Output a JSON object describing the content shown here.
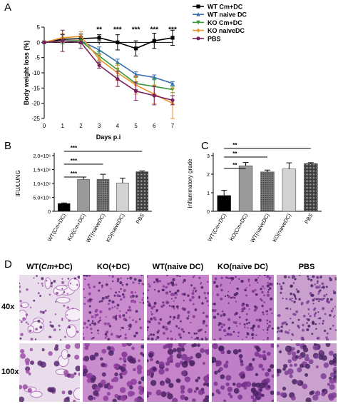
{
  "panels": {
    "a": "A",
    "b": "B",
    "c": "C",
    "d": "D"
  },
  "chart_data": [
    {
      "type": "line",
      "panel": "A",
      "xlabel": "Days p.i",
      "ylabel": "Body weight loss (%)",
      "xlim": [
        0,
        7
      ],
      "ylim": [
        -25,
        5
      ],
      "xticks": [
        "0",
        "1",
        "2",
        "3",
        "4",
        "5",
        "6",
        "7"
      ],
      "yticks": [
        "5",
        "0",
        "-5",
        "-10",
        "-15",
        "-20",
        "-25"
      ],
      "x": [
        0,
        1,
        2,
        3,
        4,
        5,
        6,
        7
      ],
      "series": [
        {
          "name": "WT Cm+DC",
          "color": "#000000",
          "marker": "square",
          "values": [
            0,
            1.0,
            1.2,
            1.5,
            0,
            -2.0,
            0.5,
            1.5
          ],
          "errors": [
            0,
            1.5,
            1.5,
            1.0,
            2.5,
            2.5,
            2.5,
            2.5
          ]
        },
        {
          "name": "WT naive DC",
          "color": "#3a6fb0",
          "marker": "triangle",
          "values": [
            0,
            0.5,
            0.5,
            -2.5,
            -6.5,
            -10.5,
            -11.5,
            -13.5
          ],
          "errors": [
            0,
            1.0,
            1.0,
            1.0,
            1.0,
            0.8,
            0.8,
            0.6
          ]
        },
        {
          "name": "KO Cm+DC",
          "color": "#3a9a3a",
          "marker": "triangle-down",
          "values": [
            0,
            0.5,
            0.5,
            -4.5,
            -9.0,
            -13.5,
            -14.5,
            -15.5
          ],
          "errors": [
            0,
            1.0,
            1.0,
            1.5,
            2.0,
            2.0,
            2.5,
            1.0
          ]
        },
        {
          "name": "KO naiveDC",
          "color": "#e8922a",
          "marker": "diamond",
          "values": [
            0,
            1.5,
            2.0,
            -5.5,
            -10.0,
            -14.0,
            -17.0,
            -20.0
          ],
          "errors": [
            0,
            1.5,
            1.5,
            1.5,
            2.5,
            3.0,
            3.0,
            5.0
          ]
        },
        {
          "name": "PBS",
          "color": "#7a1f5e",
          "marker": "circle",
          "values": [
            0,
            0.5,
            0,
            -7.5,
            -12.0,
            -16.0,
            -17.5,
            -19.0
          ],
          "errors": [
            0,
            3.5,
            2.0,
            1.0,
            2.5,
            3.0,
            3.0,
            1.5
          ]
        }
      ],
      "annotations": [
        {
          "x": 3,
          "text": "**"
        },
        {
          "x": 4,
          "text": "***"
        },
        {
          "x": 5,
          "text": "***"
        },
        {
          "x": 6,
          "text": "***"
        },
        {
          "x": 7,
          "text": "***"
        }
      ],
      "legend_position": "top-right"
    },
    {
      "type": "bar",
      "panel": "B",
      "ylabel": "IFU/LUNG",
      "ylim": [
        0,
        2000000
      ],
      "yticks": [
        "0",
        "5.0×10⁵",
        "1.0×10⁶",
        "1.5×10⁶",
        "2.0×10⁶"
      ],
      "categories": [
        "WT(Cm+DC)",
        "KO(Cm+DC)",
        "WT(naiveDC)",
        "KO(naiveDC)",
        "PBS"
      ],
      "values": [
        280000,
        1150000,
        1150000,
        1020000,
        1420000
      ],
      "errors": [
        20000,
        80000,
        180000,
        170000,
        30000
      ],
      "significance": [
        {
          "from": 0,
          "to": 1,
          "text": "***"
        },
        {
          "from": 0,
          "to": 2,
          "text": "***"
        },
        {
          "from": 0,
          "to": 4,
          "text": "***"
        }
      ]
    },
    {
      "type": "bar",
      "panel": "C",
      "ylabel": "Inflammatory grade",
      "ylim": [
        0,
        3
      ],
      "yticks": [
        "0",
        "1",
        "2",
        "3"
      ],
      "categories": [
        "WT(Cm+DC)",
        "KO(Cm+DC)",
        "WT(naiveDC)",
        "KO(naiveDC)",
        "PBS"
      ],
      "values": [
        0.85,
        2.45,
        2.12,
        2.28,
        2.57
      ],
      "errors": [
        0.28,
        0.18,
        0.1,
        0.33,
        0.05
      ],
      "significance": [
        {
          "from": 0,
          "to": 1,
          "text": "**"
        },
        {
          "from": 0,
          "to": 2,
          "text": "**"
        },
        {
          "from": 0,
          "to": 4,
          "text": "**"
        }
      ]
    }
  ],
  "panel_d": {
    "columns": [
      {
        "prefix": "WT(",
        "italic": "Cm",
        "suffix": "+DC)"
      },
      {
        "prefix": "KO(",
        "italic": "",
        "suffix": "+DC)"
      },
      {
        "prefix": "WT(naive DC)",
        "italic": "",
        "suffix": ""
      },
      {
        "prefix": "KO(naive DC)",
        "italic": "",
        "suffix": ""
      },
      {
        "prefix": "PBS",
        "italic": "",
        "suffix": ""
      }
    ],
    "rows": [
      "40x",
      "100x"
    ],
    "image_tones": [
      {
        "base": "#e9dceb",
        "cell": "#9b4fa6",
        "dark": "#5a2a73"
      },
      {
        "base": "#c98ccd",
        "cell": "#8e3c9c",
        "dark": "#4e2468"
      },
      {
        "base": "#c583c9",
        "cell": "#7d3590",
        "dark": "#47205f"
      },
      {
        "base": "#c080c8",
        "cell": "#7a3390",
        "dark": "#452060"
      },
      {
        "base": "#caa0cf",
        "cell": "#7f3e95",
        "dark": "#482463"
      }
    ]
  }
}
